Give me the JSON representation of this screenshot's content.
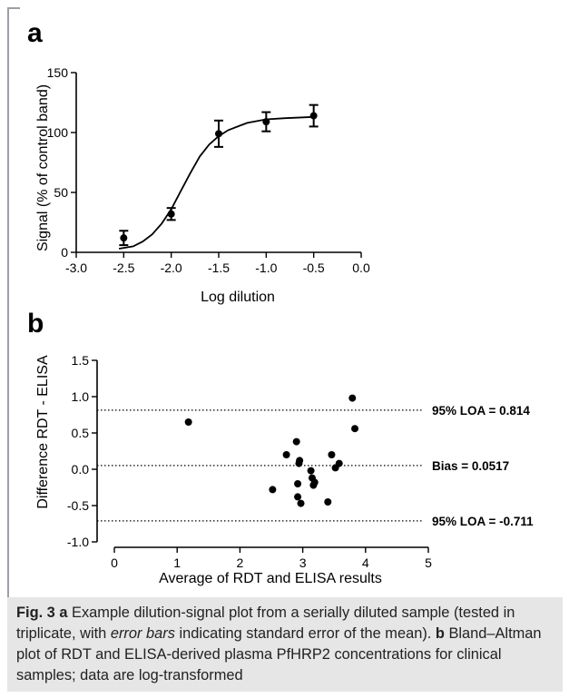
{
  "chart_data": [
    {
      "type": "line",
      "panel_label": "a",
      "xlabel": "Log dilution",
      "ylabel": "Signal (% of control band)",
      "xlim": [
        -3.0,
        0.0
      ],
      "ylim": [
        0,
        150
      ],
      "x_ticks": [
        "-3.0",
        "-2.5",
        "-2.0",
        "-1.5",
        "-1.0",
        "-0.5",
        "0.0"
      ],
      "y_ticks": [
        "0",
        "50",
        "100",
        "150"
      ],
      "grid": false,
      "points": [
        {
          "x": -2.5,
          "y": 12,
          "err": 6
        },
        {
          "x": -2.0,
          "y": 32,
          "err": 5
        },
        {
          "x": -1.5,
          "y": 99,
          "err": 11
        },
        {
          "x": -1.0,
          "y": 109,
          "err": 8
        },
        {
          "x": -0.5,
          "y": 114,
          "err": 9
        }
      ],
      "fit_curve": [
        {
          "x": -2.55,
          "y": 3
        },
        {
          "x": -2.4,
          "y": 5
        },
        {
          "x": -2.3,
          "y": 9
        },
        {
          "x": -2.2,
          "y": 15
        },
        {
          "x": -2.1,
          "y": 24
        },
        {
          "x": -2.0,
          "y": 36
        },
        {
          "x": -1.9,
          "y": 51
        },
        {
          "x": -1.8,
          "y": 66
        },
        {
          "x": -1.7,
          "y": 80
        },
        {
          "x": -1.6,
          "y": 90
        },
        {
          "x": -1.5,
          "y": 97
        },
        {
          "x": -1.4,
          "y": 102
        },
        {
          "x": -1.3,
          "y": 105
        },
        {
          "x": -1.2,
          "y": 108
        },
        {
          "x": -1.0,
          "y": 111
        },
        {
          "x": -0.8,
          "y": 112
        },
        {
          "x": -0.5,
          "y": 113
        }
      ]
    },
    {
      "type": "scatter",
      "panel_label": "b",
      "xlabel": "Average of RDT and ELISA results",
      "ylabel": "Difference RDT - ELISA",
      "xlim": [
        0,
        5
      ],
      "ylim": [
        -1.0,
        1.5
      ],
      "x_ticks": [
        "0",
        "1",
        "2",
        "3",
        "4",
        "5"
      ],
      "y_ticks": [
        "-1.0",
        "-0.5",
        "0.0",
        "0.5",
        "1.0",
        "1.5"
      ],
      "grid": false,
      "points": [
        {
          "x": 1.18,
          "y": 0.65
        },
        {
          "x": 2.52,
          "y": -0.28
        },
        {
          "x": 2.74,
          "y": 0.2
        },
        {
          "x": 2.9,
          "y": 0.38
        },
        {
          "x": 2.92,
          "y": -0.2
        },
        {
          "x": 2.92,
          "y": -0.38
        },
        {
          "x": 2.94,
          "y": 0.08
        },
        {
          "x": 2.95,
          "y": 0.12
        },
        {
          "x": 2.97,
          "y": -0.47
        },
        {
          "x": 3.13,
          "y": -0.02
        },
        {
          "x": 3.15,
          "y": -0.12
        },
        {
          "x": 3.17,
          "y": -0.22
        },
        {
          "x": 3.19,
          "y": -0.18
        },
        {
          "x": 3.4,
          "y": -0.45
        },
        {
          "x": 3.46,
          "y": 0.2
        },
        {
          "x": 3.52,
          "y": 0.02
        },
        {
          "x": 3.58,
          "y": 0.08
        },
        {
          "x": 3.79,
          "y": 0.98
        },
        {
          "x": 3.83,
          "y": 0.56
        }
      ],
      "reference_lines": [
        {
          "y": 0.814,
          "label": "95% LOA = 0.814"
        },
        {
          "y": 0.0517,
          "label": "Bias = 0.0517"
        },
        {
          "y": -0.711,
          "label": "95% LOA = -0.711"
        }
      ]
    }
  ],
  "caption": {
    "fig_label": "Fig. 3",
    "a_label": "a",
    "text1": " Example dilution-signal plot from a serially diluted sample (tested in triplicate, with ",
    "italic_text": "error bars",
    "text2": " indicating standard error of the mean). ",
    "b_label": "b",
    "text3": " Bland–Altman plot of RDT and ELISA-derived plasma PfHRP2 concentrations for clinical samples; data are log-transformed"
  }
}
